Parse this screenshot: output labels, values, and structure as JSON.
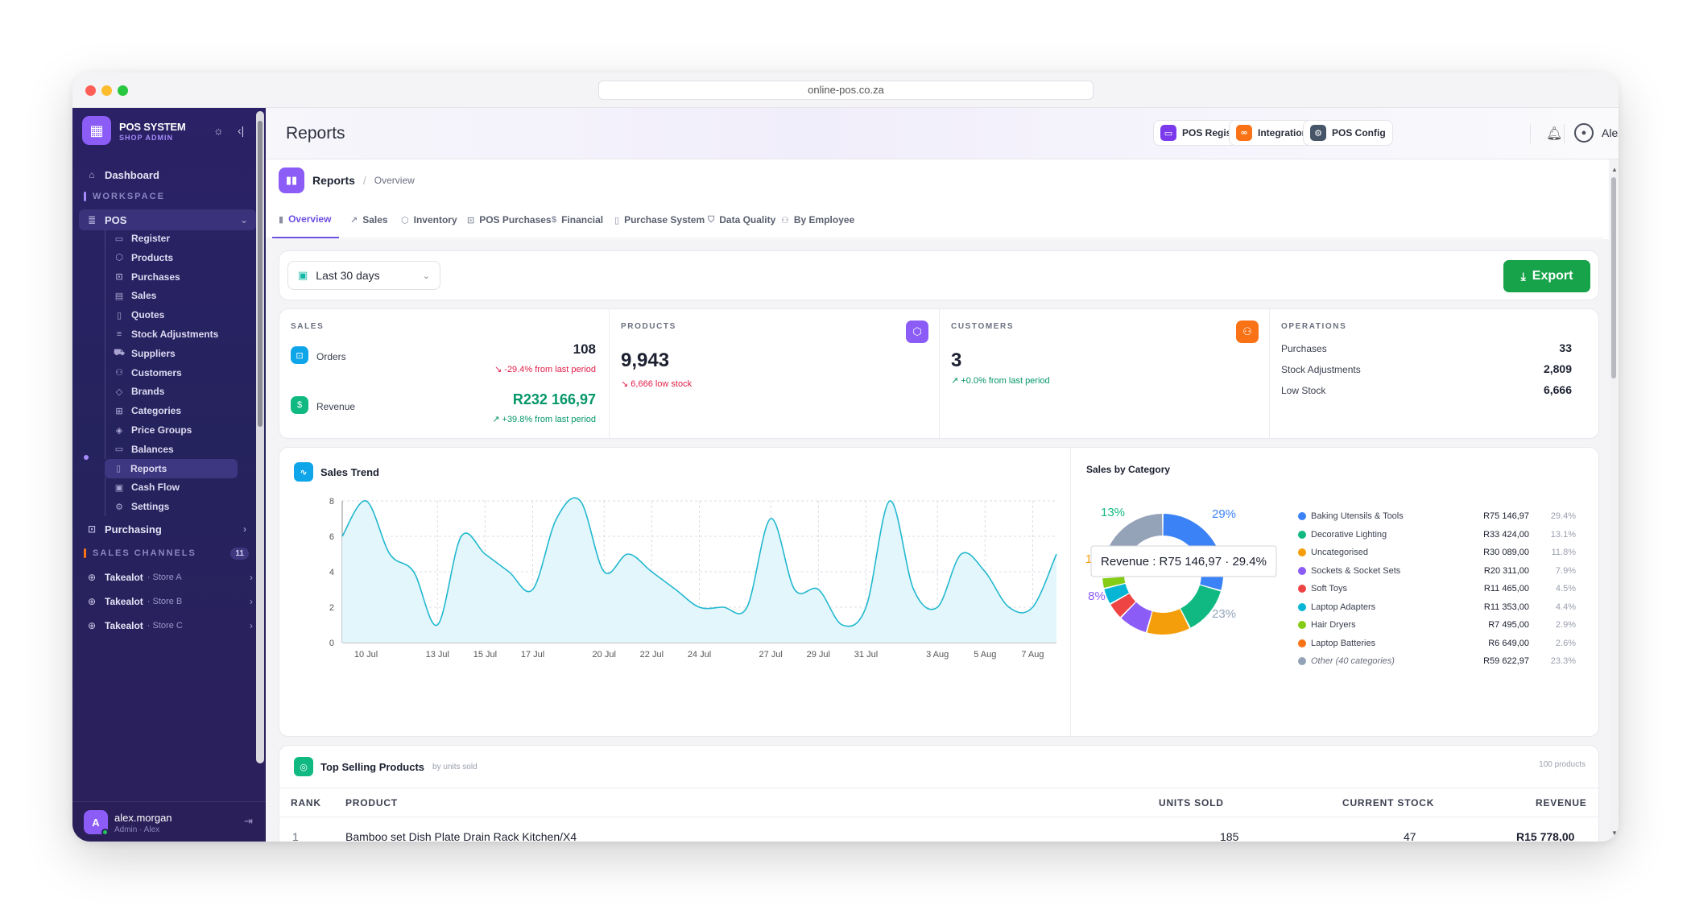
{
  "browser": {
    "url": "online-pos.co.za"
  },
  "sidebar": {
    "brand_title": "POS SYSTEM",
    "brand_subtitle": "SHOP ADMIN",
    "dashboard": "Dashboard",
    "workspace_label": "WORKSPACE",
    "pos_label": "POS",
    "pos_items": [
      {
        "label": "Register",
        "icon": "register-icon"
      },
      {
        "label": "Products",
        "icon": "box-icon"
      },
      {
        "label": "Purchases",
        "icon": "cart-icon"
      },
      {
        "label": "Sales",
        "icon": "receipt-icon"
      },
      {
        "label": "Quotes",
        "icon": "document-icon"
      },
      {
        "label": "Stock Adjustments",
        "icon": "sliders-icon"
      },
      {
        "label": "Suppliers",
        "icon": "truck-icon"
      },
      {
        "label": "Customers",
        "icon": "users-icon"
      },
      {
        "label": "Brands",
        "icon": "tag-icon"
      },
      {
        "label": "Categories",
        "icon": "grid-icon"
      },
      {
        "label": "Price Groups",
        "icon": "price-tag-icon"
      },
      {
        "label": "Balances",
        "icon": "wallet-icon"
      },
      {
        "label": "Reports",
        "icon": "report-icon"
      },
      {
        "label": "Cash Flow",
        "icon": "cash-icon"
      },
      {
        "label": "Settings",
        "icon": "gear-icon"
      }
    ],
    "purchasing": "Purchasing",
    "channels_label": "SALES CHANNELS",
    "channels_count": "11",
    "channels": [
      {
        "name": "Takealot",
        "store": "· Store A"
      },
      {
        "name": "Takealot",
        "store": "· Store B"
      },
      {
        "name": "Takealot",
        "store": "· Store C"
      }
    ],
    "user": {
      "initial": "A",
      "name": "alex.morgan",
      "role": "Admin · Alex"
    }
  },
  "topbar": {
    "title": "Reports",
    "pos_register": "POS Register",
    "integrations": "Integrations",
    "pos_config": "POS Config",
    "user": "Alex"
  },
  "breadcrumb": {
    "page": "Reports",
    "sep": "/",
    "section": "Overview"
  },
  "tabs": [
    {
      "label": "Overview",
      "icon": "bar-chart-icon"
    },
    {
      "label": "Sales",
      "icon": "trend-icon"
    },
    {
      "label": "Inventory",
      "icon": "box-icon"
    },
    {
      "label": "POS Purchases",
      "icon": "cart-icon"
    },
    {
      "label": "Financial",
      "icon": "dollar-icon"
    },
    {
      "label": "Purchase System",
      "icon": "clipboard-icon"
    },
    {
      "label": "Data Quality",
      "icon": "shield-icon"
    },
    {
      "label": "By Employee",
      "icon": "users-icon"
    }
  ],
  "filter": {
    "range": "Last 30 days",
    "export": "Export"
  },
  "stats": {
    "sales": {
      "label": "SALES",
      "orders_label": "Orders",
      "orders": "108",
      "orders_change": "-29.4% from last period",
      "revenue_label": "Revenue",
      "revenue": "R232 166,97",
      "revenue_change": "+39.8% from last period"
    },
    "products": {
      "label": "PRODUCTS",
      "value": "9,943",
      "note": "6,666 low stock"
    },
    "customers": {
      "label": "CUSTOMERS",
      "value": "3",
      "change": "+0.0% from last period"
    },
    "operations": {
      "label": "OPERATIONS",
      "rows": [
        {
          "label": "Purchases",
          "value": "33"
        },
        {
          "label": "Stock Adjustments",
          "value": "2,809"
        },
        {
          "label": "Low Stock",
          "value": "6,666"
        }
      ]
    }
  },
  "chart_data": [
    {
      "type": "area",
      "title": "Sales Trend",
      "x": [
        "9 Jul",
        "10 Jul",
        "11 Jul",
        "12 Jul",
        "13 Jul",
        "14 Jul",
        "15 Jul",
        "16 Jul",
        "17 Jul",
        "18 Jul",
        "19 Jul",
        "20 Jul",
        "21 Jul",
        "22 Jul",
        "23 Jul",
        "24 Jul",
        "25 Jul",
        "26 Jul",
        "27 Jul",
        "28 Jul",
        "29 Jul",
        "30 Jul",
        "31 Jul",
        "1 Aug",
        "2 Aug",
        "3 Aug",
        "4 Aug",
        "5 Aug",
        "6 Aug",
        "7 Aug",
        "8 Aug"
      ],
      "x_tick_labels": [
        "10 Jul",
        "13 Jul",
        "15 Jul",
        "17 Jul",
        "20 Jul",
        "22 Jul",
        "24 Jul",
        "27 Jul",
        "29 Jul",
        "31 Jul",
        "3 Aug",
        "5 Aug",
        "7 Aug"
      ],
      "values": [
        6,
        8,
        5,
        4,
        1,
        6,
        5,
        4,
        3,
        7,
        8,
        4,
        5,
        4,
        3,
        2,
        2,
        2,
        7,
        3,
        3,
        1,
        2,
        8,
        3,
        2,
        5,
        4,
        2,
        2,
        5
      ],
      "ylim": [
        0,
        8
      ],
      "yticks": [
        "0",
        "2",
        "4",
        "6",
        "8"
      ],
      "grid": true,
      "color": "#22b8cf"
    },
    {
      "type": "pie",
      "title": "Sales by Category",
      "slices": [
        {
          "label": "Baking Utensils & Tools",
          "value": "R75 146,97",
          "percent": 29.4,
          "pct": "29.4%",
          "color": "#3b82f6"
        },
        {
          "label": "Decorative Lighting",
          "value": "R33 424,00",
          "percent": 13.1,
          "pct": "13.1%",
          "color": "#10b981"
        },
        {
          "label": "Uncategorised",
          "value": "R30 089,00",
          "percent": 11.8,
          "pct": "11.8%",
          "color": "#f59e0b"
        },
        {
          "label": "Sockets & Socket Sets",
          "value": "R20 311,00",
          "percent": 7.9,
          "pct": "7.9%",
          "color": "#8b5cf6"
        },
        {
          "label": "Soft Toys",
          "value": "R11 465,00",
          "percent": 4.5,
          "pct": "4.5%",
          "color": "#ef4444"
        },
        {
          "label": "Laptop Adapters",
          "value": "R11 353,00",
          "percent": 4.4,
          "pct": "4.4%",
          "color": "#06b6d4"
        },
        {
          "label": "Hair Dryers",
          "value": "R7 495,00",
          "percent": 2.9,
          "pct": "2.9%",
          "color": "#84cc16"
        },
        {
          "label": "Laptop Batteries",
          "value": "R6 649,00",
          "percent": 2.6,
          "pct": "2.6%",
          "color": "#f97316"
        },
        {
          "label": "Other (40 categories)",
          "value": "R59 622,97",
          "percent": 23.3,
          "pct": "23.3%",
          "color": "#94a3b8"
        }
      ],
      "slice_labels": {
        "top_right": "29%",
        "top_left": "13%",
        "left_partial": "1",
        "left": "8%",
        "bottom_right": "23%"
      },
      "tooltip": "Revenue : R75 146,97 · 29.4%"
    }
  ],
  "top_products": {
    "title": "Top Selling Products",
    "subtitle": "by units sold",
    "count": "100 products",
    "columns": [
      "RANK",
      "PRODUCT",
      "UNITS SOLD",
      "CURRENT STOCK",
      "REVENUE"
    ],
    "rows": [
      {
        "rank": "1",
        "product": "Bamboo set Dish Plate Drain Rack Kitchen/X4",
        "units": "185",
        "stock": "47",
        "revenue": "R15 778,00"
      }
    ]
  }
}
